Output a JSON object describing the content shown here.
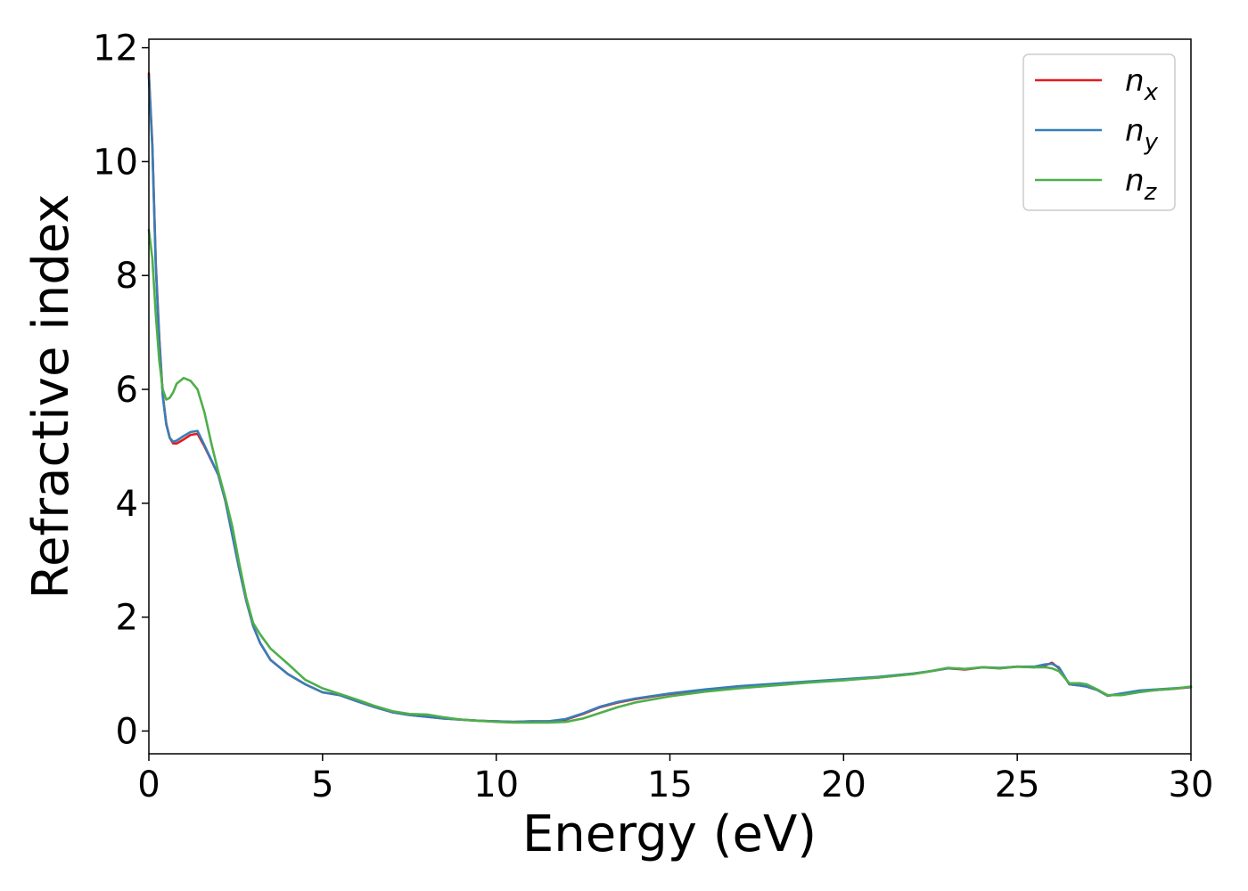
{
  "chart_data": {
    "type": "line",
    "title": "",
    "xlabel": "Energy (eV)",
    "ylabel": "Refractive index",
    "xlim": [
      0,
      30
    ],
    "ylim": [
      -0.4,
      12.15
    ],
    "xticks": [
      0,
      5,
      10,
      15,
      20,
      25,
      30
    ],
    "yticks": [
      0,
      2,
      4,
      6,
      8,
      10,
      12
    ],
    "grid": false,
    "legend_position": "top-right",
    "series": [
      {
        "name": "n",
        "subscript": "x",
        "color": "#e41a1c",
        "x": [
          0,
          0.1,
          0.2,
          0.3,
          0.4,
          0.5,
          0.6,
          0.7,
          0.8,
          1.0,
          1.2,
          1.4,
          1.6,
          1.8,
          2.0,
          2.2,
          2.4,
          2.6,
          2.8,
          3.0,
          3.2,
          3.5,
          4.0,
          4.5,
          5.0,
          5.5,
          6.0,
          6.5,
          7.0,
          7.5,
          8.0,
          8.5,
          9.0,
          9.5,
          10.0,
          10.5,
          11.0,
          11.5,
          12.0,
          12.5,
          13.0,
          13.5,
          14.0,
          15.0,
          16.0,
          17.0,
          18.0,
          19.0,
          20.0,
          21.0,
          22.0,
          22.5,
          23.0,
          23.5,
          24.0,
          24.5,
          25.0,
          25.5,
          25.8,
          26.0,
          26.2,
          26.5,
          26.8,
          27.0,
          27.3,
          27.6,
          28.0,
          28.5,
          29.0,
          29.5,
          30.0
        ],
        "y": [
          11.55,
          10.3,
          8.2,
          6.9,
          5.9,
          5.4,
          5.15,
          5.05,
          5.05,
          5.12,
          5.2,
          5.22,
          5.0,
          4.75,
          4.5,
          4.05,
          3.45,
          2.85,
          2.3,
          1.85,
          1.55,
          1.25,
          1.0,
          0.82,
          0.68,
          0.63,
          0.52,
          0.42,
          0.33,
          0.28,
          0.25,
          0.22,
          0.2,
          0.18,
          0.17,
          0.16,
          0.17,
          0.17,
          0.2,
          0.3,
          0.42,
          0.5,
          0.56,
          0.65,
          0.72,
          0.78,
          0.82,
          0.86,
          0.9,
          0.94,
          1.0,
          1.05,
          1.1,
          1.08,
          1.12,
          1.1,
          1.13,
          1.12,
          1.15,
          1.2,
          1.1,
          0.82,
          0.8,
          0.78,
          0.72,
          0.62,
          0.65,
          0.7,
          0.72,
          0.74,
          0.77
        ]
      },
      {
        "name": "n",
        "subscript": "y",
        "color": "#377eb8",
        "x": [
          0,
          0.1,
          0.2,
          0.3,
          0.4,
          0.5,
          0.6,
          0.7,
          0.8,
          1.0,
          1.2,
          1.4,
          1.6,
          1.8,
          2.0,
          2.2,
          2.4,
          2.6,
          2.8,
          3.0,
          3.2,
          3.5,
          4.0,
          4.5,
          5.0,
          5.5,
          6.0,
          6.5,
          7.0,
          7.5,
          8.0,
          8.5,
          9.0,
          9.5,
          10.0,
          10.5,
          11.0,
          11.5,
          12.0,
          12.5,
          13.0,
          13.5,
          14.0,
          15.0,
          16.0,
          17.0,
          18.0,
          19.0,
          20.0,
          21.0,
          22.0,
          22.5,
          23.0,
          23.5,
          24.0,
          24.5,
          25.0,
          25.5,
          25.8,
          26.0,
          26.2,
          26.5,
          26.8,
          27.0,
          27.3,
          27.6,
          28.0,
          28.5,
          29.0,
          29.5,
          30.0
        ],
        "y": [
          11.5,
          10.25,
          8.15,
          6.85,
          5.88,
          5.38,
          5.15,
          5.08,
          5.1,
          5.18,
          5.25,
          5.27,
          5.02,
          4.76,
          4.5,
          4.05,
          3.45,
          2.85,
          2.3,
          1.85,
          1.55,
          1.25,
          1.0,
          0.82,
          0.68,
          0.63,
          0.52,
          0.42,
          0.33,
          0.28,
          0.25,
          0.22,
          0.2,
          0.18,
          0.17,
          0.16,
          0.17,
          0.17,
          0.21,
          0.31,
          0.43,
          0.51,
          0.57,
          0.66,
          0.73,
          0.79,
          0.83,
          0.87,
          0.91,
          0.95,
          1.01,
          1.05,
          1.1,
          1.09,
          1.12,
          1.11,
          1.13,
          1.13,
          1.17,
          1.18,
          1.12,
          0.82,
          0.8,
          0.78,
          0.72,
          0.62,
          0.66,
          0.71,
          0.73,
          0.75,
          0.77
        ]
      },
      {
        "name": "n",
        "subscript": "z",
        "color": "#4daf4a",
        "x": [
          0,
          0.1,
          0.2,
          0.3,
          0.4,
          0.5,
          0.6,
          0.7,
          0.8,
          1.0,
          1.2,
          1.4,
          1.6,
          1.8,
          2.0,
          2.2,
          2.4,
          2.6,
          2.8,
          3.0,
          3.2,
          3.5,
          4.0,
          4.5,
          5.0,
          5.5,
          6.0,
          6.5,
          7.0,
          7.5,
          8.0,
          8.5,
          9.0,
          9.5,
          10.0,
          10.5,
          11.0,
          11.5,
          12.0,
          12.5,
          13.0,
          13.5,
          14.0,
          15.0,
          16.0,
          17.0,
          18.0,
          19.0,
          20.0,
          21.0,
          22.0,
          22.5,
          23.0,
          23.5,
          24.0,
          24.5,
          25.0,
          25.5,
          25.8,
          26.0,
          26.2,
          26.5,
          26.8,
          27.0,
          27.3,
          27.6,
          28.0,
          28.5,
          29.0,
          29.5,
          30.0
        ],
        "y": [
          8.8,
          8.3,
          7.3,
          6.5,
          6.0,
          5.82,
          5.85,
          5.95,
          6.1,
          6.2,
          6.15,
          6.0,
          5.6,
          5.05,
          4.55,
          4.1,
          3.6,
          2.95,
          2.35,
          1.9,
          1.7,
          1.45,
          1.18,
          0.9,
          0.75,
          0.65,
          0.55,
          0.44,
          0.35,
          0.3,
          0.29,
          0.24,
          0.2,
          0.18,
          0.16,
          0.15,
          0.15,
          0.15,
          0.16,
          0.22,
          0.32,
          0.42,
          0.5,
          0.61,
          0.69,
          0.75,
          0.8,
          0.85,
          0.89,
          0.94,
          1.0,
          1.05,
          1.11,
          1.09,
          1.12,
          1.1,
          1.13,
          1.12,
          1.12,
          1.1,
          1.05,
          0.84,
          0.84,
          0.82,
          0.73,
          0.63,
          0.63,
          0.68,
          0.72,
          0.74,
          0.78
        ]
      }
    ]
  }
}
